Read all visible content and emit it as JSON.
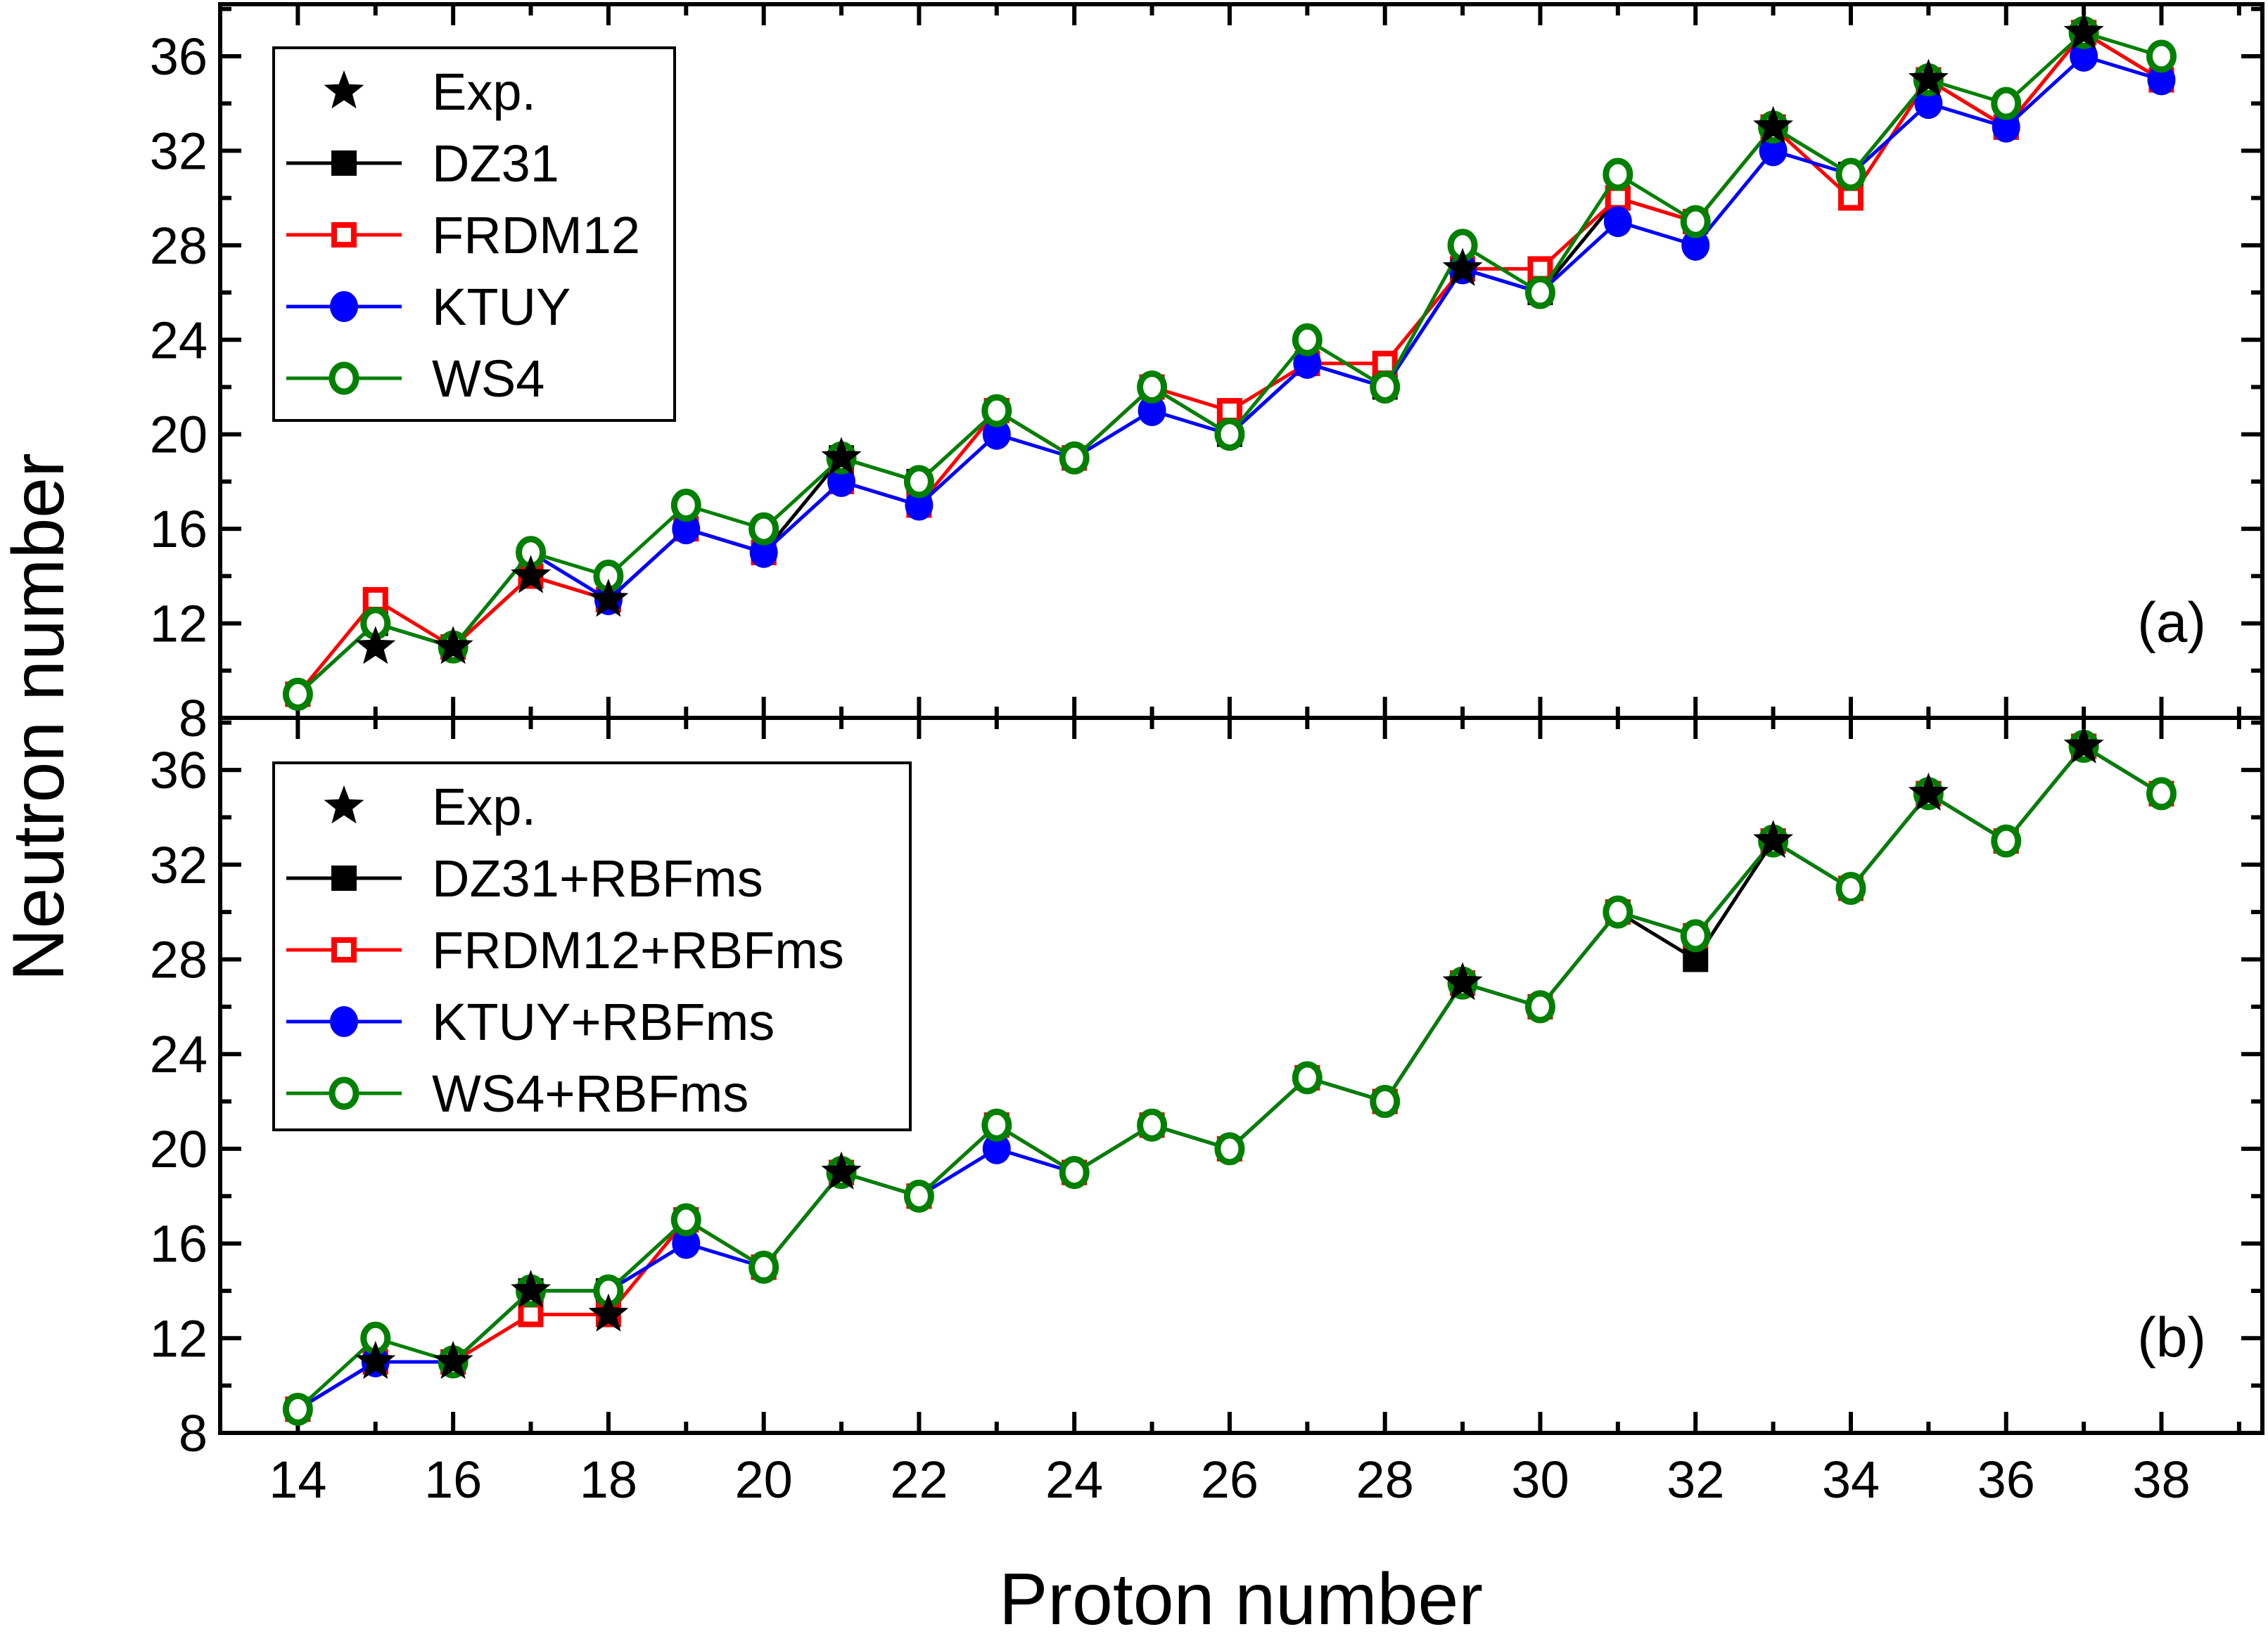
{
  "chart_data": [
    {
      "type": "line",
      "panel_label": "(a)",
      "xlabel": "Proton number",
      "ylabel": "Neutron number",
      "xlim": [
        13,
        39.3
      ],
      "ylim": [
        8,
        38.2
      ],
      "xticks": [
        14,
        16,
        18,
        20,
        22,
        24,
        26,
        28,
        30,
        32,
        34,
        36,
        38
      ],
      "yticks": [
        8,
        12,
        16,
        20,
        24,
        28,
        32,
        36
      ],
      "legend_position": "top-left",
      "x": [
        14,
        15,
        16,
        17,
        18,
        19,
        20,
        21,
        22,
        23,
        24,
        25,
        26,
        27,
        28,
        29,
        30,
        31,
        32,
        33,
        34,
        35,
        36,
        37,
        38
      ],
      "series": [
        {
          "name": "Exp.",
          "marker": "star",
          "color": "#000000",
          "line": false,
          "values": [
            null,
            11,
            11,
            14,
            13,
            null,
            null,
            19,
            null,
            null,
            null,
            null,
            null,
            null,
            null,
            27,
            null,
            null,
            null,
            33,
            null,
            35,
            null,
            37,
            null
          ]
        },
        {
          "name": "DZ31",
          "marker": "square-filled",
          "color": "#000000",
          "line": true,
          "values": [
            9,
            12,
            11,
            14,
            13,
            16,
            15,
            19,
            18,
            21,
            19,
            22,
            20,
            23,
            22,
            27,
            26,
            30,
            29,
            33,
            31,
            35,
            33,
            37,
            35
          ]
        },
        {
          "name": "FRDM12",
          "marker": "square-open",
          "color": "#ff0000",
          "line": true,
          "values": [
            9,
            13,
            11,
            14,
            13,
            16,
            15,
            18,
            17,
            21,
            19,
            22,
            21,
            23,
            23,
            27,
            27,
            30,
            29,
            33,
            30,
            35,
            33,
            37,
            35
          ]
        },
        {
          "name": "KTUY",
          "marker": "circle-filled",
          "color": "#0000ff",
          "line": true,
          "values": [
            9,
            12,
            11,
            15,
            13,
            16,
            15,
            18,
            17,
            20,
            19,
            21,
            20,
            23,
            22,
            27,
            26,
            29,
            28,
            32,
            31,
            34,
            33,
            36,
            35
          ]
        },
        {
          "name": "WS4",
          "marker": "circle-open",
          "color": "#008000",
          "line": true,
          "values": [
            9,
            12,
            11,
            15,
            14,
            17,
            16,
            19,
            18,
            21,
            19,
            22,
            20,
            24,
            22,
            28,
            26,
            31,
            29,
            33,
            31,
            35,
            34,
            37,
            36
          ]
        }
      ]
    },
    {
      "type": "line",
      "panel_label": "(b)",
      "xlabel": "Proton number",
      "ylabel": "Neutron number",
      "xlim": [
        13,
        39.3
      ],
      "ylim": [
        8,
        38.2
      ],
      "xticks": [
        14,
        16,
        18,
        20,
        22,
        24,
        26,
        28,
        30,
        32,
        34,
        36,
        38
      ],
      "yticks": [
        8,
        12,
        16,
        20,
        24,
        28,
        32,
        36
      ],
      "legend_position": "top-left",
      "x": [
        14,
        15,
        16,
        17,
        18,
        19,
        20,
        21,
        22,
        23,
        24,
        25,
        26,
        27,
        28,
        29,
        30,
        31,
        32,
        33,
        34,
        35,
        36,
        37,
        38
      ],
      "series": [
        {
          "name": "Exp.",
          "marker": "star",
          "color": "#000000",
          "line": false,
          "values": [
            null,
            11,
            11,
            14,
            13,
            null,
            null,
            19,
            null,
            null,
            null,
            null,
            null,
            null,
            null,
            27,
            null,
            null,
            null,
            33,
            null,
            35,
            null,
            37,
            null
          ]
        },
        {
          "name": "DZ31+RBFms",
          "marker": "square-filled",
          "color": "#000000",
          "line": true,
          "values": [
            9,
            11,
            11,
            14,
            14,
            17,
            15,
            19,
            18,
            21,
            19,
            21,
            20,
            23,
            22,
            27,
            26,
            30,
            28,
            33,
            31,
            35,
            33,
            37,
            35
          ]
        },
        {
          "name": "FRDM12+RBFms",
          "marker": "square-open",
          "color": "#ff0000",
          "line": true,
          "values": [
            9,
            11,
            11,
            13,
            13,
            17,
            15,
            19,
            18,
            21,
            19,
            21,
            20,
            23,
            22,
            27,
            26,
            30,
            29,
            33,
            31,
            35,
            33,
            37,
            35
          ]
        },
        {
          "name": "KTUY+RBFms",
          "marker": "circle-filled",
          "color": "#0000ff",
          "line": true,
          "values": [
            9,
            11,
            11,
            14,
            14,
            16,
            15,
            19,
            18,
            20,
            19,
            21,
            20,
            23,
            22,
            27,
            26,
            30,
            29,
            33,
            31,
            35,
            33,
            37,
            35
          ]
        },
        {
          "name": "WS4+RBFms",
          "marker": "circle-open",
          "color": "#008000",
          "line": true,
          "values": [
            9,
            12,
            11,
            14,
            14,
            17,
            15,
            19,
            18,
            21,
            19,
            21,
            20,
            23,
            22,
            27,
            26,
            30,
            29,
            33,
            31,
            35,
            33,
            37,
            35
          ]
        }
      ]
    }
  ]
}
